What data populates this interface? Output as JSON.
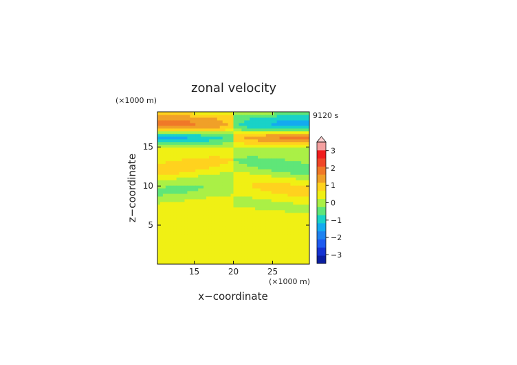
{
  "chart_data": {
    "type": "heatmap",
    "title": "zonal velocity",
    "xlabel": "x−coordinate",
    "ylabel": "z−coordinate",
    "x_unit": "(×1000 m)",
    "z_unit": "(×1000 m)",
    "time_label": "9120 s",
    "xlim": [
      10.3,
      29.7
    ],
    "ylim": [
      0,
      19.5
    ],
    "x_ticks": [
      15,
      20,
      25
    ],
    "y_ticks": [
      5,
      10,
      15
    ],
    "colorbar": {
      "ticks": [
        3,
        2,
        1,
        0,
        -1,
        -2,
        -3
      ],
      "levels": [
        -3.5,
        -3,
        -2.5,
        -2,
        -1.5,
        -1,
        -0.5,
        0,
        0.5,
        1,
        1.5,
        2,
        2.5,
        3,
        3.5
      ],
      "colors": [
        "#0a1ea0",
        "#1432d2",
        "#1e5af0",
        "#1e82f0",
        "#14aaf0",
        "#19d2c8",
        "#5fe678",
        "#aaf046",
        "#f0f014",
        "#ffd21e",
        "#f0a028",
        "#f07828",
        "#f04628",
        "#f01e1e",
        "#f5a0a0",
        "#ffd2d2"
      ]
    },
    "field_description_rows": [
      {
        "z_range": [
          18.2,
          19.2
        ],
        "left": 1.1,
        "right": -1.1
      },
      {
        "z_range": [
          17.0,
          18.2
        ],
        "left": 1.6,
        "right": -1.6
      },
      {
        "z_range": [
          15.5,
          17.0
        ],
        "left": -1.6,
        "right": 1.6
      },
      {
        "z_range": [
          13.5,
          15.0
        ],
        "left": 0.3,
        "right": -0.3
      },
      {
        "z_range": [
          11.0,
          13.0
        ],
        "left": 0.8,
        "right": -0.8
      },
      {
        "z_range": [
          8.0,
          10.5
        ],
        "left": -0.6,
        "right": 0.7
      },
      {
        "z_range": [
          6.5,
          8.0
        ],
        "left": 0.2,
        "right": -0.2
      },
      {
        "z_range": [
          0,
          6.5
        ],
        "left": 0.3,
        "right": 0.3
      }
    ]
  }
}
